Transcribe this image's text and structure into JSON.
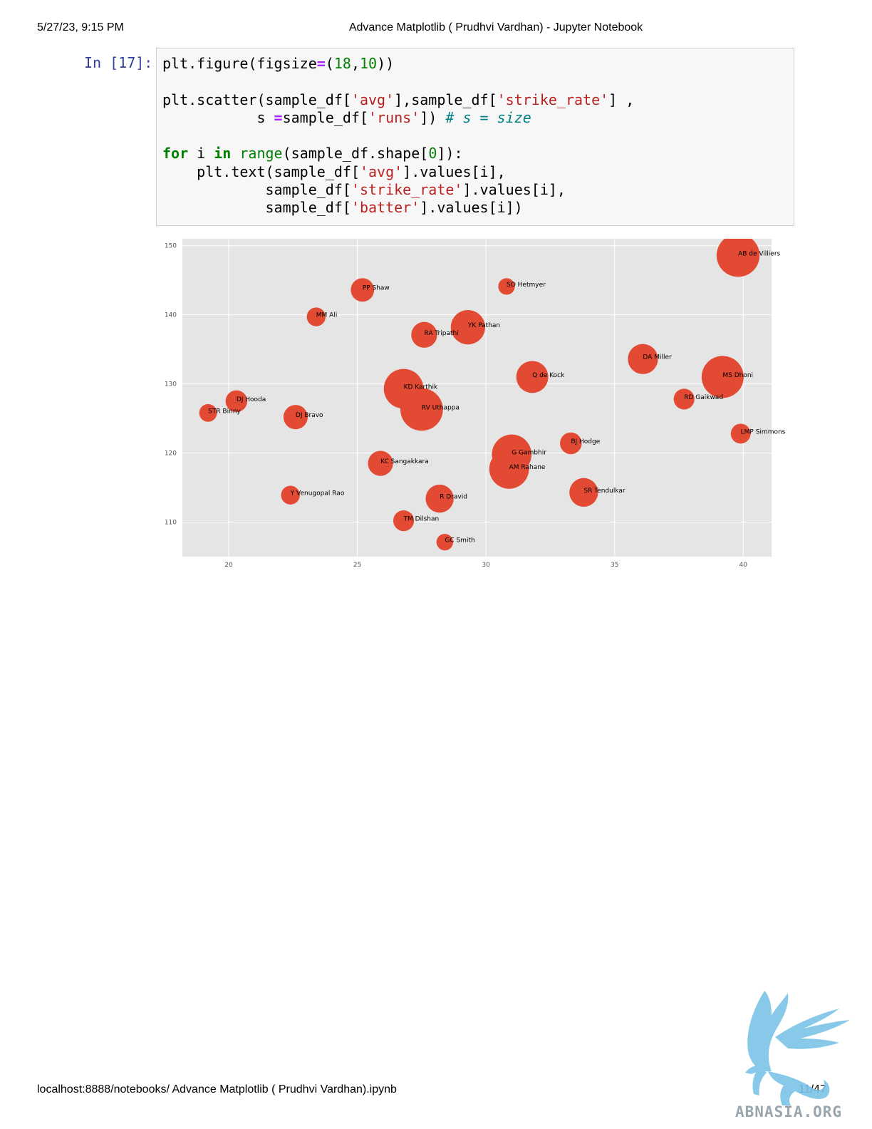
{
  "header": {
    "datetime": "5/27/23, 9:15 PM",
    "title": "Advance Matplotlib ( Prudhvi Vardhan) - Jupyter Notebook"
  },
  "cell": {
    "prompt": "In [17]:",
    "code_lines": [
      "plt.figure(figsize=(18,10))",
      "",
      "plt.scatter(sample_df['avg'],sample_df['strike_rate'] ,",
      "           s =sample_df['runs']) # s = size",
      "",
      "for i in range(sample_df.shape[0]):",
      "    plt.text(sample_df['avg'].values[i],",
      "            sample_df['strike_rate'].values[i],",
      "            sample_df['batter'].values[i])"
    ]
  },
  "chart_data": {
    "type": "scatter",
    "title": "",
    "xlabel": "",
    "ylabel": "",
    "xlim": [
      18.2,
      41.1
    ],
    "ylim": [
      105,
      151
    ],
    "x_ticks": [
      20,
      25,
      30,
      35,
      40
    ],
    "y_ticks": [
      110,
      120,
      130,
      140,
      150
    ],
    "grid": true,
    "style": "ggplot",
    "marker_color": "#e24a33",
    "plot_background": "#e5e5e5",
    "points": [
      {
        "label": "AB de Villiers",
        "x": 39.8,
        "y": 148.6,
        "size": 4700
      },
      {
        "label": "SO Hetmyer",
        "x": 30.8,
        "y": 144.1,
        "size": 700
      },
      {
        "label": "PP Shaw",
        "x": 25.2,
        "y": 143.6,
        "size": 1400
      },
      {
        "label": "MM Ali",
        "x": 23.4,
        "y": 139.7,
        "size": 900
      },
      {
        "label": "YK Pathan",
        "x": 29.3,
        "y": 138.2,
        "size": 3000
      },
      {
        "label": "RA Tripathi",
        "x": 27.6,
        "y": 137.1,
        "size": 1700
      },
      {
        "label": "DA Miller",
        "x": 36.1,
        "y": 133.6,
        "size": 2300
      },
      {
        "label": "Q de Kock",
        "x": 31.8,
        "y": 131.0,
        "size": 2600
      },
      {
        "label": "MS Dhoni",
        "x": 39.2,
        "y": 131.0,
        "size": 4500
      },
      {
        "label": "KD Karthik",
        "x": 26.8,
        "y": 129.3,
        "size": 4000
      },
      {
        "label": "DJ Hooda",
        "x": 20.3,
        "y": 127.5,
        "size": 1200
      },
      {
        "label": "RD Gaikwad",
        "x": 37.7,
        "y": 127.8,
        "size": 1100
      },
      {
        "label": "RV Uthappa",
        "x": 27.5,
        "y": 126.3,
        "size": 4600
      },
      {
        "label": "STR Binny",
        "x": 19.2,
        "y": 125.8,
        "size": 800
      },
      {
        "label": "DJ Bravo",
        "x": 22.6,
        "y": 125.2,
        "size": 1500
      },
      {
        "label": "LMP Simmons",
        "x": 39.9,
        "y": 122.8,
        "size": 1000
      },
      {
        "label": "BJ Hodge",
        "x": 33.3,
        "y": 121.4,
        "size": 1200
      },
      {
        "label": "G Gambhir",
        "x": 31.0,
        "y": 119.8,
        "size": 4000
      },
      {
        "label": "KC Sangakkara",
        "x": 25.9,
        "y": 118.5,
        "size": 1600
      },
      {
        "label": "AM Rahane",
        "x": 30.9,
        "y": 117.7,
        "size": 4000
      },
      {
        "label": "SR Tendulkar",
        "x": 33.8,
        "y": 114.3,
        "size": 2100
      },
      {
        "label": "Y Venugopal Rao",
        "x": 22.4,
        "y": 113.9,
        "size": 900
      },
      {
        "label": "R Dravid",
        "x": 28.2,
        "y": 113.4,
        "size": 2000
      },
      {
        "label": "TM Dilshan",
        "x": 26.8,
        "y": 110.2,
        "size": 1100
      },
      {
        "label": "GC Smith",
        "x": 28.4,
        "y": 107.1,
        "size": 700
      }
    ]
  },
  "footer": {
    "url": "localhost:8888/notebooks/ Advance Matplotlib ( Prudhvi Vardhan).ipynb",
    "page": "11/47"
  },
  "watermark": {
    "text": "ABNASIA.ORG",
    "color": "#7cc3e6"
  }
}
